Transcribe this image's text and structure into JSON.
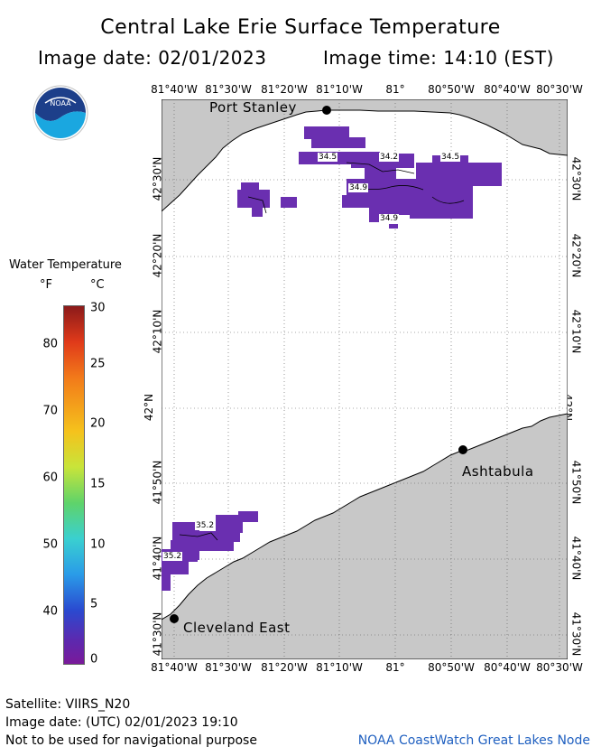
{
  "header": {
    "title": "Central Lake Erie Surface Temperature",
    "image_date": "Image date: 02/01/2023",
    "image_time": "Image time: 14:10 (EST)"
  },
  "logo": {
    "name": "noaa-logo",
    "text": "NOAA"
  },
  "map": {
    "lon_labels": [
      "81°40'W",
      "81°30'W",
      "81°20'W",
      "81°10'W",
      "81°",
      "80°50'W",
      "80°40'W",
      "80°30'W"
    ],
    "lat_labels": [
      "41°30'N",
      "41°40'N",
      "41°50'N",
      "42°N",
      "42°10'N",
      "42°20'N",
      "42°30'N"
    ],
    "cities": [
      {
        "name": "Port Stanley"
      },
      {
        "name": "Ashtabula"
      },
      {
        "name": "Cleveland East"
      }
    ],
    "temp_labels": [
      "34.5",
      "34.2",
      "34.5",
      "34.9",
      "34.9",
      "35.2",
      "35.2"
    ],
    "colors": {
      "land": "#c8c8c8",
      "water": "#ffffff",
      "cold_water": "#6a2fb0"
    }
  },
  "colorbar": {
    "title": "Water Temperature",
    "unit_f": "°F",
    "unit_c": "°C",
    "f_ticks": [
      "80",
      "70",
      "60",
      "50",
      "40"
    ],
    "c_ticks": [
      "30",
      "25",
      "20",
      "15",
      "10",
      "5",
      "0"
    ]
  },
  "footer": {
    "satellite": "Satellite: VIIRS_N20",
    "utc_date": "Image date: (UTC) 02/01/2023  19:10",
    "disclaimer": "Not to be used for navigational purpose",
    "credit": "NOAA CoastWatch Great Lakes Node"
  }
}
